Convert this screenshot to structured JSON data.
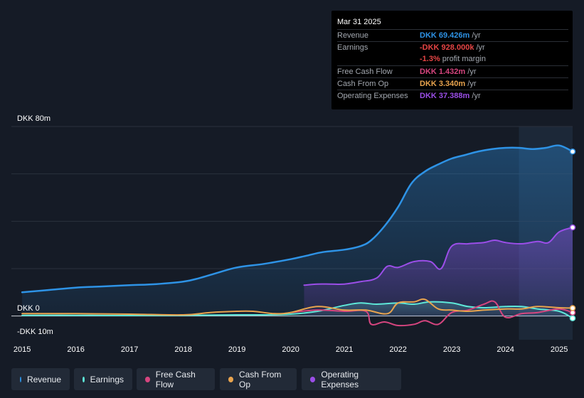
{
  "chart_data": {
    "type": "area",
    "currency": "DKK",
    "y_unit": "m",
    "ylim": [
      -10,
      80
    ],
    "y_tick_labels": [
      {
        "value": 80,
        "label": "DKK 80m"
      },
      {
        "value": 0,
        "label": "DKK 0"
      },
      {
        "value": -10,
        "label": "-DKK 10m"
      }
    ],
    "xlim": [
      2014.8,
      2025.25
    ],
    "x_ticks": [
      2015,
      2016,
      2017,
      2018,
      2019,
      2020,
      2021,
      2022,
      2023,
      2024,
      2025
    ],
    "highlight_start": 2024.25,
    "series": [
      {
        "name": "Revenue",
        "color": "#2e93e6",
        "fill": true,
        "x": [
          2015,
          2015.5,
          2016,
          2016.5,
          2017,
          2017.5,
          2018,
          2018.3,
          2018.6,
          2019,
          2019.5,
          2020,
          2020.3,
          2020.6,
          2021,
          2021.3,
          2021.5,
          2021.75,
          2022,
          2022.25,
          2022.5,
          2022.75,
          2023,
          2023.25,
          2023.5,
          2023.75,
          2024,
          2024.25,
          2024.5,
          2024.75,
          2025,
          2025.25
        ],
        "values": [
          10,
          11,
          12,
          12.5,
          13,
          13.5,
          14.5,
          16,
          18,
          20.5,
          22,
          24,
          25.5,
          27,
          28,
          29.5,
          32,
          38,
          46,
          56,
          61,
          64,
          66.5,
          68,
          69.5,
          70.5,
          71,
          71,
          70.5,
          71,
          72,
          69.426
        ]
      },
      {
        "name": "Earnings",
        "color": "#5ee8d9",
        "fill": true,
        "x": [
          2015,
          2016,
          2017,
          2018,
          2019,
          2019.5,
          2020,
          2020.5,
          2021,
          2021.3,
          2021.6,
          2022,
          2022.3,
          2022.6,
          2023,
          2023.3,
          2023.6,
          2024,
          2024.3,
          2024.6,
          2025,
          2025.25
        ],
        "values": [
          0.3,
          0.3,
          0.2,
          0.3,
          0.5,
          0.5,
          0.8,
          2,
          4.5,
          5.5,
          5,
          5.5,
          5,
          6,
          5.5,
          4,
          3.5,
          4,
          4,
          3,
          2,
          -0.928
        ]
      },
      {
        "name": "Free Cash Flow",
        "color": "#d6457f",
        "fill": false,
        "x": [
          2020,
          2020.5,
          2021,
          2021.4,
          2021.5,
          2021.75,
          2022,
          2022.3,
          2022.5,
          2022.75,
          2023,
          2023.3,
          2023.6,
          2023.8,
          2024,
          2024.3,
          2024.6,
          2025,
          2025.25
        ],
        "values": [
          1.5,
          2.5,
          2,
          2,
          -3.5,
          -2.5,
          -4,
          -3.5,
          -2,
          -3.5,
          1.5,
          2.5,
          5,
          6,
          -0.5,
          1,
          1.5,
          3,
          1.432
        ]
      },
      {
        "name": "Cash From Op",
        "color": "#e9a44e",
        "fill": false,
        "x": [
          2015,
          2016,
          2017,
          2018,
          2018.5,
          2019,
          2019.3,
          2019.7,
          2020,
          2020.5,
          2021,
          2021.4,
          2021.8,
          2022,
          2022.3,
          2022.5,
          2022.75,
          2023,
          2023.3,
          2023.6,
          2024,
          2024.3,
          2024.6,
          2025,
          2025.25
        ],
        "values": [
          1,
          1,
          0.8,
          0.5,
          1.5,
          2,
          2,
          1,
          1.5,
          4,
          2.5,
          2.5,
          1,
          5.5,
          6,
          7,
          3,
          2.5,
          2,
          2.5,
          3,
          3,
          4,
          3.5,
          3.34
        ]
      },
      {
        "name": "Operating Expenses",
        "color": "#9b4ee8",
        "fill": true,
        "x": [
          2020.25,
          2020.5,
          2020.75,
          2021,
          2021.3,
          2021.6,
          2021.8,
          2022,
          2022.3,
          2022.6,
          2022.8,
          2023,
          2023.3,
          2023.6,
          2023.8,
          2024,
          2024.3,
          2024.6,
          2024.8,
          2025,
          2025.25
        ],
        "values": [
          13,
          13.5,
          13.5,
          13.5,
          14.5,
          16,
          21,
          20.5,
          23,
          23,
          20,
          29.5,
          30.5,
          31,
          32,
          31,
          30.5,
          31.5,
          31,
          35.5,
          37.388
        ]
      }
    ]
  },
  "tooltip": {
    "date": "Mar 31 2025",
    "rows": [
      {
        "label": "Revenue",
        "value": "DKK 69.426m",
        "suffix": " /yr",
        "color": "#2e93e6"
      },
      {
        "label": "Earnings",
        "value": "-DKK 928.000k",
        "suffix": " /yr",
        "color": "#e64545"
      },
      {
        "label": "",
        "value": "-1.3%",
        "suffix": " profit margin",
        "color": "#e64545"
      },
      {
        "label": "Free Cash Flow",
        "value": "DKK 1.432m",
        "suffix": " /yr",
        "color": "#d6457f"
      },
      {
        "label": "Cash From Op",
        "value": "DKK 3.340m",
        "suffix": " /yr",
        "color": "#e9a44e"
      },
      {
        "label": "Operating Expenses",
        "value": "DKK 37.388m",
        "suffix": " /yr",
        "color": "#9b4ee8"
      }
    ]
  },
  "legend": [
    {
      "label": "Revenue",
      "color": "#2e93e6"
    },
    {
      "label": "Earnings",
      "color": "#5ee8d9"
    },
    {
      "label": "Free Cash Flow",
      "color": "#d6457f"
    },
    {
      "label": "Cash From Op",
      "color": "#e9a44e"
    },
    {
      "label": "Operating Expenses",
      "color": "#9b4ee8"
    }
  ]
}
